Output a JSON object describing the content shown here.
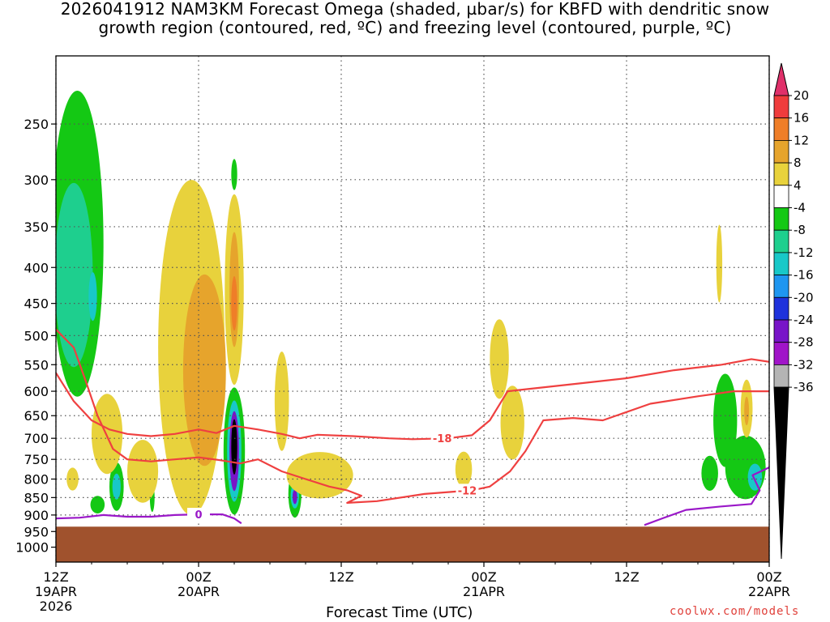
{
  "title": {
    "line1": "2026041912 NAM3KM Forecast Omega (shaded, µbar/s) for KBFD with dendritic snow",
    "line2": "growth region (contoured, red, ºC) and freezing level (contoured, purple, ºC)"
  },
  "credit": "coolwx.com/models",
  "chart_data": {
    "type": "contour",
    "title": "2026041912 NAM3KM Forecast Omega (shaded, µbar/s) for KBFD with dendritic snow growth region (contoured, red, ºC) and freezing level (contoured, purple, ºC)",
    "xlabel": "Forecast Time (UTC)",
    "ylabel": "",
    "x_range_hours": [
      0,
      60
    ],
    "y_range_hPa": [
      1050,
      200
    ],
    "y_scale": "log-pressure",
    "grid": true,
    "yticks": [
      {
        "p": 250,
        "label": "250"
      },
      {
        "p": 300,
        "label": "300"
      },
      {
        "p": 350,
        "label": "350"
      },
      {
        "p": 400,
        "label": "400"
      },
      {
        "p": 450,
        "label": "450"
      },
      {
        "p": 500,
        "label": "500"
      },
      {
        "p": 550,
        "label": "550"
      },
      {
        "p": 600,
        "label": "600"
      },
      {
        "p": 650,
        "label": "650"
      },
      {
        "p": 700,
        "label": "700"
      },
      {
        "p": 750,
        "label": "750"
      },
      {
        "p": 800,
        "label": "800"
      },
      {
        "p": 850,
        "label": "850"
      },
      {
        "p": 900,
        "label": "900"
      },
      {
        "p": 950,
        "label": "950"
      },
      {
        "p": 1000,
        "label": "1000"
      }
    ],
    "xticks": [
      {
        "h": 0,
        "l1": "12Z",
        "l2": "19APR",
        "l3": "2026"
      },
      {
        "h": 12,
        "l1": "00Z",
        "l2": "20APR",
        "l3": ""
      },
      {
        "h": 24,
        "l1": "12Z",
        "l2": "",
        "l3": ""
      },
      {
        "h": 36,
        "l1": "00Z",
        "l2": "21APR",
        "l3": ""
      },
      {
        "h": 48,
        "l1": "12Z",
        "l2": "",
        "l3": ""
      },
      {
        "h": 60,
        "l1": "00Z",
        "l2": "22APR",
        "l3": ""
      }
    ],
    "colorbar": {
      "labels": [
        "20",
        "16",
        "12",
        "8",
        "4",
        "-4",
        "-8",
        "-12",
        "-16",
        "-20",
        "-24",
        "-28",
        "-32",
        "-36"
      ],
      "colors": [
        "#e0306a",
        "#ef3c3c",
        "#ef7e28",
        "#e6a42c",
        "#e8d23c",
        "#ffffff",
        "#14c814",
        "#1ecf8e",
        "#18c8c8",
        "#1e96f0",
        "#1e32dc",
        "#7814c8",
        "#a014c8",
        "#b4b4b4",
        "#000000"
      ]
    },
    "terrain": {
      "color": "#a0522d",
      "top_hPa": 935
    },
    "omega_cells": [
      {
        "h": 1.8,
        "p": 370,
        "dh": 2.2,
        "dp": 175,
        "v": -8
      },
      {
        "h": 1.5,
        "p": 410,
        "dh": 1.6,
        "dp": 120,
        "v": -12
      },
      {
        "h": 3.1,
        "p": 440,
        "dh": 0.35,
        "dp": 35,
        "v": -16
      },
      {
        "h": 15.0,
        "p": 295,
        "dh": 0.25,
        "dp": 15,
        "v": -8
      },
      {
        "h": 15.0,
        "p": 730,
        "dh": 0.9,
        "dp": 150,
        "v": -8
      },
      {
        "h": 15.0,
        "p": 730,
        "dh": 0.6,
        "dp": 120,
        "v": -16
      },
      {
        "h": 15.0,
        "p": 730,
        "dh": 0.4,
        "dp": 95,
        "v": -24
      },
      {
        "h": 15.0,
        "p": 720,
        "dh": 0.25,
        "dp": 65,
        "v": -36
      },
      {
        "h": 20.1,
        "p": 840,
        "dh": 0.55,
        "dp": 65,
        "v": -8
      },
      {
        "h": 20.1,
        "p": 845,
        "dh": 0.35,
        "dp": 35,
        "v": -16
      },
      {
        "h": 20.1,
        "p": 848,
        "dh": 0.2,
        "dp": 20,
        "v": -24
      },
      {
        "h": 5.1,
        "p": 820,
        "dh": 0.6,
        "dp": 65,
        "v": -8
      },
      {
        "h": 5.1,
        "p": 820,
        "dh": 0.35,
        "dp": 35,
        "v": -16
      },
      {
        "h": 3.5,
        "p": 870,
        "dh": 0.6,
        "dp": 25,
        "v": -8
      },
      {
        "h": 8.1,
        "p": 850,
        "dh": 0.2,
        "dp": 40,
        "v": -8
      },
      {
        "h": 56.3,
        "p": 660,
        "dh": 1.0,
        "dp": 100,
        "v": -8
      },
      {
        "h": 58.0,
        "p": 770,
        "dh": 1.7,
        "dp": 80,
        "v": -8
      },
      {
        "h": 55.0,
        "p": 785,
        "dh": 0.7,
        "dp": 45,
        "v": -8
      },
      {
        "h": 58.8,
        "p": 795,
        "dh": 0.6,
        "dp": 35,
        "v": -16
      },
      {
        "h": 11.4,
        "p": 520,
        "dh": 2.8,
        "dp": 260,
        "v": 4
      },
      {
        "h": 12.5,
        "p": 560,
        "dh": 1.8,
        "dp": 170,
        "v": 8
      },
      {
        "h": 15.0,
        "p": 430,
        "dh": 0.8,
        "dp": 130,
        "v": 4
      },
      {
        "h": 15.0,
        "p": 430,
        "dh": 0.4,
        "dp": 80,
        "v": 8
      },
      {
        "h": 15.0,
        "p": 450,
        "dh": 0.25,
        "dp": 40,
        "v": 12
      },
      {
        "h": 19.0,
        "p": 620,
        "dh": 0.6,
        "dp": 100,
        "v": 4
      },
      {
        "h": 22.2,
        "p": 790,
        "dh": 2.8,
        "dp": 60,
        "v": 4
      },
      {
        "h": 4.3,
        "p": 690,
        "dh": 1.3,
        "dp": 90,
        "v": 4
      },
      {
        "h": 7.3,
        "p": 780,
        "dh": 1.3,
        "dp": 80,
        "v": 4
      },
      {
        "h": 1.4,
        "p": 800,
        "dh": 0.5,
        "dp": 30,
        "v": 4
      },
      {
        "h": 37.3,
        "p": 540,
        "dh": 0.8,
        "dp": 70,
        "v": 4
      },
      {
        "h": 38.4,
        "p": 665,
        "dh": 1.0,
        "dp": 80,
        "v": 4
      },
      {
        "h": 34.3,
        "p": 775,
        "dh": 0.7,
        "dp": 45,
        "v": 4
      },
      {
        "h": 55.8,
        "p": 395,
        "dh": 0.25,
        "dp": 50,
        "v": 4
      },
      {
        "h": 58.1,
        "p": 635,
        "dh": 0.5,
        "dp": 60,
        "v": 4
      },
      {
        "h": 58.1,
        "p": 640,
        "dh": 0.2,
        "dp": 30,
        "v": 8
      }
    ],
    "contours": [
      {
        "label": "-18",
        "color": "#ef4040",
        "label_at": [
          32.5,
          700
        ],
        "points": [
          [
            0,
            565
          ],
          [
            1.5,
            620
          ],
          [
            3,
            660
          ],
          [
            4.5,
            680
          ],
          [
            6,
            690
          ],
          [
            8,
            695
          ],
          [
            10,
            690
          ],
          [
            12,
            680
          ],
          [
            13.5,
            688
          ],
          [
            15,
            672
          ],
          [
            17,
            680
          ],
          [
            19,
            690
          ],
          [
            20.5,
            700
          ],
          [
            22,
            692
          ],
          [
            25,
            695
          ],
          [
            28,
            700
          ],
          [
            30,
            702
          ],
          [
            33,
            700
          ],
          [
            35,
            693
          ],
          [
            36.5,
            660
          ],
          [
            38,
            600
          ],
          [
            40,
            595
          ],
          [
            44,
            585
          ],
          [
            48,
            575
          ],
          [
            52,
            560
          ],
          [
            56,
            550
          ],
          [
            58.5,
            540
          ],
          [
            60,
            545
          ]
        ]
      },
      {
        "label": "-12",
        "color": "#ef4040",
        "label_at": [
          34.6,
          830
        ],
        "points": [
          [
            0,
            490
          ],
          [
            1.5,
            520
          ],
          [
            2.5,
            580
          ],
          [
            3.5,
            650
          ],
          [
            4.8,
            725
          ],
          [
            6,
            750
          ],
          [
            8,
            755
          ],
          [
            10,
            750
          ],
          [
            12,
            745
          ],
          [
            13.8,
            752
          ],
          [
            15.5,
            760
          ],
          [
            17,
            750
          ],
          [
            19,
            780
          ],
          [
            21,
            800
          ],
          [
            23,
            820
          ],
          [
            24.5,
            830
          ],
          [
            25.7,
            845
          ],
          [
            24.5,
            865
          ],
          [
            27,
            860
          ],
          [
            31,
            840
          ],
          [
            35,
            830
          ],
          [
            36.5,
            820
          ],
          [
            38.2,
            780
          ],
          [
            39.5,
            730
          ],
          [
            41,
            660
          ],
          [
            43.5,
            655
          ],
          [
            46,
            660
          ],
          [
            47.7,
            645
          ],
          [
            50,
            625
          ],
          [
            54,
            610
          ],
          [
            57,
            600
          ],
          [
            60,
            600
          ]
        ]
      },
      {
        "label": "0",
        "color": "#9a18c8",
        "label_at": [
          12,
          898
        ],
        "points": [
          [
            0,
            910
          ],
          [
            2,
            908
          ],
          [
            4,
            900
          ],
          [
            6,
            905
          ],
          [
            8,
            905
          ],
          [
            10,
            900
          ],
          [
            12,
            898
          ],
          [
            14,
            898
          ],
          [
            15,
            910
          ],
          [
            15.6,
            925
          ]
        ]
      },
      {
        "label": "",
        "color": "#9a18c8",
        "label_at": null,
        "points": [
          [
            49.5,
            930
          ],
          [
            51,
            910
          ],
          [
            53,
            885
          ],
          [
            56,
            875
          ],
          [
            58.5,
            868
          ],
          [
            59.2,
            830
          ],
          [
            58.6,
            790
          ],
          [
            60,
            770
          ]
        ]
      }
    ]
  }
}
